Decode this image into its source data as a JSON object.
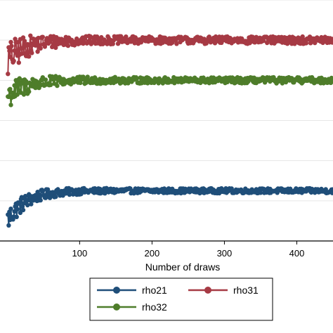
{
  "chart_data": {
    "type": "line",
    "xlabel": "Number of draws",
    "ylabel": "",
    "title": "",
    "xlim": [
      -10,
      450
    ],
    "ylim": [
      -0.2,
      1.0
    ],
    "x_ticks": [
      100,
      200,
      300,
      400
    ],
    "grid": true,
    "legend_placement": "bottom",
    "series": [
      {
        "name": "rho21",
        "color": "#1f4e79",
        "level": 0.05,
        "start_value": -0.1,
        "noise": 0.012
      },
      {
        "name": "rho31",
        "color": "#a63a44",
        "level": 0.8,
        "start_value": 0.7,
        "noise": 0.018
      },
      {
        "name": "rho32",
        "color": "#4e7d2a",
        "level": 0.6,
        "start_value": 0.52,
        "noise": 0.015
      }
    ]
  }
}
